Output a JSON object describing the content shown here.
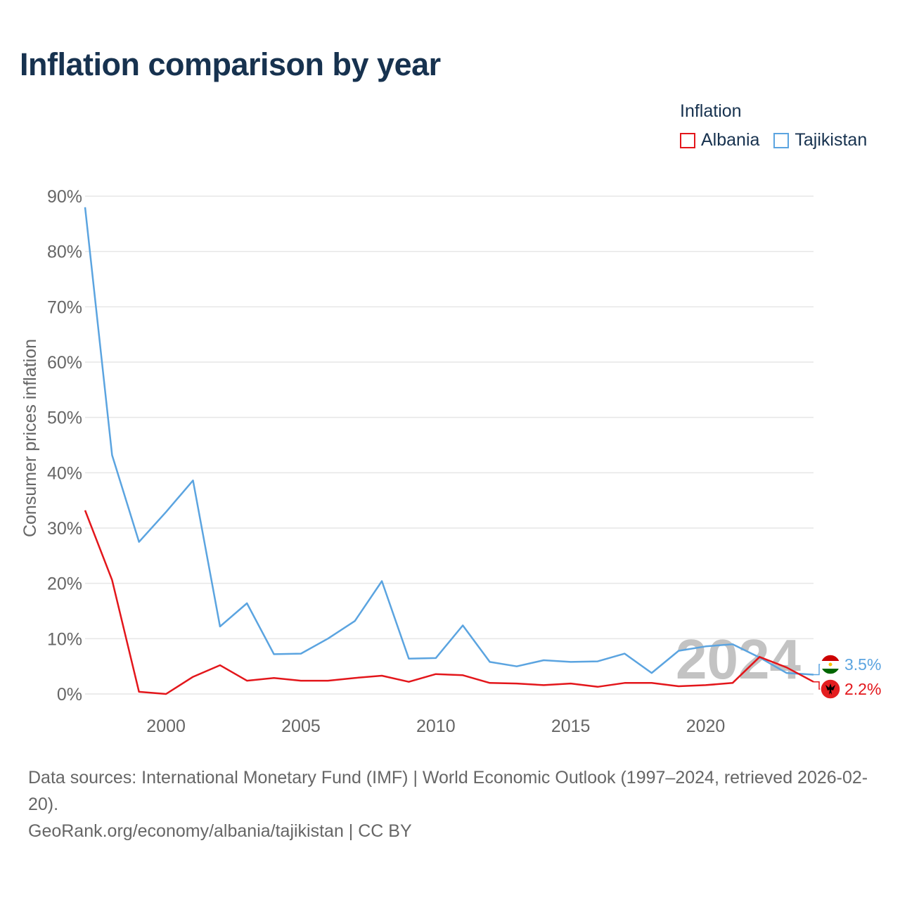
{
  "title": "Inflation comparison by year",
  "legend": {
    "title": "Inflation",
    "items": [
      {
        "label": "Albania",
        "color": "#e3161b"
      },
      {
        "label": "Tajikistan",
        "color": "#5ba4e0"
      }
    ]
  },
  "watermark_year": "2024",
  "end_labels": {
    "tajikistan": {
      "text": "3.5%",
      "color": "#5ba4e0",
      "flag": "tajikistan-flag-icon"
    },
    "albania": {
      "text": "2.2%",
      "color": "#e3161b",
      "flag": "albania-flag-icon"
    }
  },
  "footer": {
    "sources": "Data sources: International Monetary Fund (IMF) | World Economic Outlook (1997–2024, retrieved 2026-02-20).",
    "credit": "GeoRank.org/economy/albania/tajikistan | CC BY"
  },
  "chart_data": {
    "type": "line",
    "title": "Inflation comparison by year",
    "xlabel": "",
    "ylabel": "Consumer prices inflation",
    "xlim": [
      1997,
      2024
    ],
    "ylim": [
      0,
      90
    ],
    "x_ticks": [
      2000,
      2005,
      2010,
      2015,
      2020
    ],
    "x_tick_labels": [
      "2000",
      "2005",
      "2010",
      "2015",
      "2020"
    ],
    "y_ticks": [
      0,
      10,
      20,
      30,
      40,
      50,
      60,
      70,
      80,
      90
    ],
    "y_tick_labels": [
      "0%",
      "10%",
      "20%",
      "30%",
      "40%",
      "50%",
      "60%",
      "70%",
      "80%",
      "90%"
    ],
    "x": [
      1997,
      1998,
      1999,
      2000,
      2001,
      2002,
      2003,
      2004,
      2005,
      2006,
      2007,
      2008,
      2009,
      2010,
      2011,
      2012,
      2013,
      2014,
      2015,
      2016,
      2017,
      2018,
      2019,
      2020,
      2021,
      2022,
      2023,
      2024
    ],
    "series": [
      {
        "name": "Tajikistan",
        "color": "#5ba4e0",
        "values": [
          88.0,
          43.2,
          27.5,
          32.9,
          38.6,
          12.2,
          16.4,
          7.2,
          7.3,
          10.0,
          13.2,
          20.4,
          6.4,
          6.5,
          12.4,
          5.8,
          5.0,
          6.1,
          5.8,
          5.9,
          7.3,
          3.8,
          7.8,
          8.6,
          9.0,
          6.6,
          3.8,
          3.5
        ]
      },
      {
        "name": "Albania",
        "color": "#e3161b",
        "values": [
          33.2,
          20.6,
          0.4,
          0.0,
          3.1,
          5.2,
          2.4,
          2.9,
          2.4,
          2.4,
          2.9,
          3.3,
          2.2,
          3.6,
          3.4,
          2.0,
          1.9,
          1.6,
          1.9,
          1.3,
          2.0,
          2.0,
          1.4,
          1.6,
          2.0,
          6.7,
          4.8,
          2.2
        ]
      }
    ]
  }
}
